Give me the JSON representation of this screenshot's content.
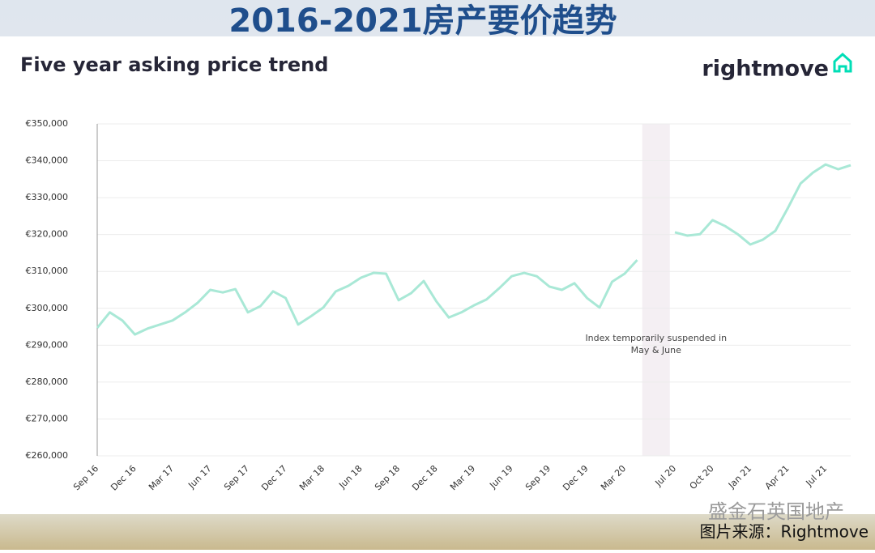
{
  "header": {
    "title": "2016-2021房产要价趋势"
  },
  "footer": {
    "watermark": "盛金石英国地产",
    "source": "图片来源：Rightmove"
  },
  "chart_data": {
    "type": "line",
    "title": "Five year asking price trend",
    "brand": "rightmove",
    "annotation": [
      "Index temporarily suspended in",
      "May & June"
    ],
    "categories": [
      "Sep 16",
      null,
      null,
      "Dec 16",
      null,
      null,
      "Mar 17",
      null,
      null,
      "Jun 17",
      null,
      null,
      "Sep 17",
      null,
      null,
      "Dec 17",
      null,
      null,
      "Mar 18",
      null,
      null,
      "Jun 18",
      null,
      null,
      "Sep 18",
      null,
      null,
      "Dec 18",
      null,
      null,
      "Mar 19",
      null,
      null,
      "Jun 19",
      null,
      null,
      "Sep 19",
      null,
      null,
      "Dec 19",
      null,
      null,
      "Mar 20",
      null,
      null,
      null,
      "Jul 20",
      null,
      null,
      "Oct 20",
      null,
      null,
      "Jan 21",
      null,
      null,
      "Apr 21",
      null,
      null,
      "Jul 21",
      null,
      null
    ],
    "series": [
      {
        "name": "Asking price",
        "color": "#a9e8d6",
        "values": [
          294700,
          298900,
          296700,
          292900,
          294500,
          295600,
          296700,
          298900,
          301500,
          305000,
          304300,
          305200,
          298900,
          300600,
          304600,
          302800,
          295600,
          297800,
          300200,
          304600,
          306100,
          308300,
          309600,
          309400,
          302200,
          304100,
          307400,
          301900,
          297500,
          298900,
          300800,
          302400,
          305400,
          308700,
          309600,
          308700,
          305900,
          305000,
          306800,
          302800,
          300200,
          307200,
          309400,
          313100,
          null,
          null,
          320600,
          319700,
          320100,
          323900,
          322300,
          320100,
          317300,
          318600,
          321000,
          327200,
          333800,
          336800,
          339000,
          337700,
          338800
        ]
      }
    ],
    "ylim": [
      260000,
      350000
    ],
    "yticks": [
      {
        "value": 260000,
        "label": "€260,000"
      },
      {
        "value": 270000,
        "label": "€270,000"
      },
      {
        "value": 280000,
        "label": "€280,000"
      },
      {
        "value": 290000,
        "label": "€290,000"
      },
      {
        "value": 300000,
        "label": "€300,000"
      },
      {
        "value": 310000,
        "label": "€310,000"
      },
      {
        "value": 320000,
        "label": "€320,000"
      },
      {
        "value": 330000,
        "label": "€330,000"
      },
      {
        "value": 340000,
        "label": "€340,000"
      },
      {
        "value": 350000,
        "label": "€350,000"
      }
    ],
    "grid": true
  }
}
